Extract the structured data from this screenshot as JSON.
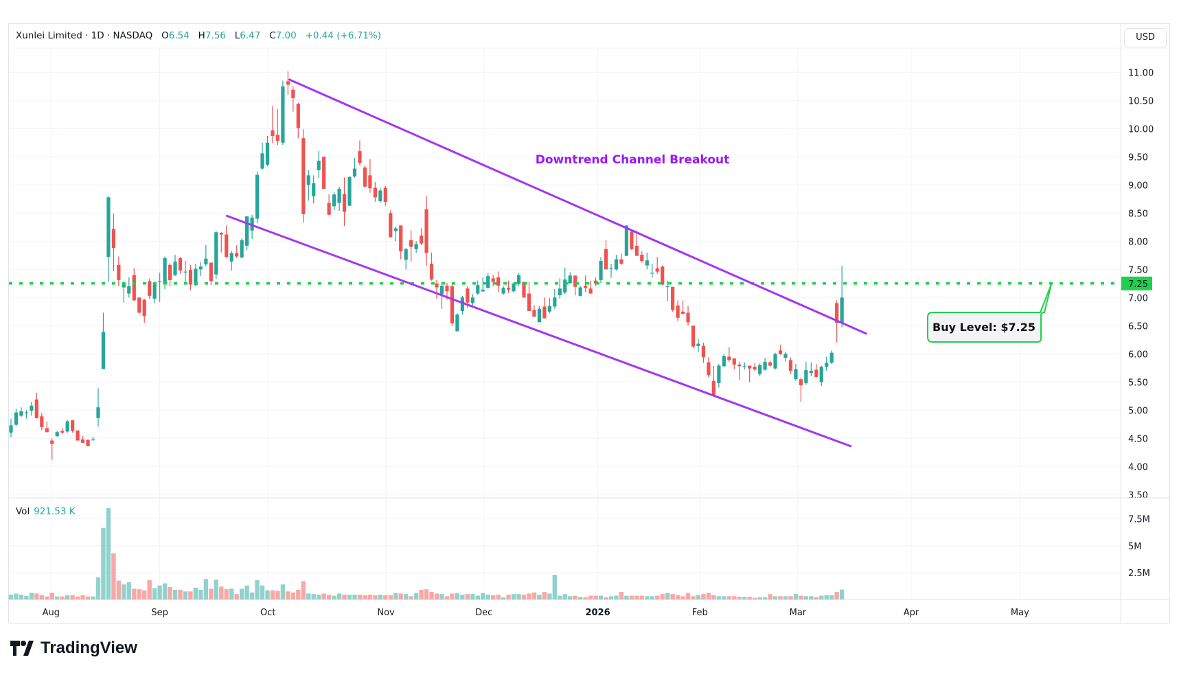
{
  "header": {
    "symbol": "Xunlei Limited · 1D · NASDAQ",
    "o_label": "O",
    "o": "6.54",
    "h_label": "H",
    "h": "7.56",
    "l_label": "L",
    "l": "6.47",
    "c_label": "C",
    "c": "7.00",
    "change": "+0.44 (+6.71%)"
  },
  "currency": "USD",
  "volume_legend": {
    "label": "Vol",
    "value": "921.53 K"
  },
  "brand": "TradingView",
  "colors": {
    "up": "#26a69a",
    "down": "#ef5350",
    "channel": "#a336f5",
    "buy": "#1ed14b",
    "annotation_text": "#9b19f5"
  },
  "chart_data": {
    "type": "candlestick",
    "title": "Xunlei Limited · 1D · NASDAQ",
    "ylim": [
      3.5,
      11.2
    ],
    "price_ticks": [
      "11.00",
      "10.50",
      "10.00",
      "9.50",
      "9.00",
      "8.50",
      "8.00",
      "7.50",
      "7.00",
      "6.50",
      "6.00",
      "5.50",
      "5.00",
      "4.50",
      "4.00",
      "3.50"
    ],
    "volume_ticks": [
      {
        "label": "7.5M",
        "value": 7.5
      },
      {
        "label": "5M",
        "value": 5
      },
      {
        "label": "2.5M",
        "value": 2.5
      }
    ],
    "x_ticks": [
      {
        "label": "Aug",
        "bar": 7.8
      },
      {
        "label": "Sep",
        "bar": 29
      },
      {
        "label": "Oct",
        "bar": 50.1
      },
      {
        "label": "Nov",
        "bar": 73.1
      },
      {
        "label": "Dec",
        "bar": 92.2
      },
      {
        "label": "2026",
        "bar": 114.4,
        "bold": true
      },
      {
        "label": "Feb",
        "bar": 134.3
      },
      {
        "label": "Mar",
        "bar": 153.4
      },
      {
        "label": "Apr",
        "bar": 175.5
      },
      {
        "label": "May",
        "bar": 196.7
      }
    ],
    "ohlc": [
      [
        4.6,
        4.85,
        4.52,
        4.73
      ],
      [
        4.74,
        5.03,
        4.72,
        4.96
      ],
      [
        4.9,
        5.05,
        4.88,
        4.98
      ],
      [
        4.95,
        5.0,
        4.85,
        4.96
      ],
      [
        4.99,
        5.15,
        4.9,
        5.08
      ],
      [
        5.19,
        5.31,
        4.85,
        4.86
      ],
      [
        4.89,
        4.95,
        4.65,
        4.7
      ],
      [
        4.68,
        4.8,
        4.6,
        4.61
      ],
      [
        4.46,
        4.5,
        4.12,
        4.4
      ],
      [
        4.54,
        4.63,
        4.52,
        4.61
      ],
      [
        4.63,
        4.68,
        4.58,
        4.6
      ],
      [
        4.62,
        4.83,
        4.6,
        4.8
      ],
      [
        4.82,
        4.82,
        4.6,
        4.63
      ],
      [
        4.64,
        4.64,
        4.46,
        4.46
      ],
      [
        4.48,
        4.54,
        4.42,
        4.42
      ],
      [
        4.47,
        4.48,
        4.36,
        4.36
      ],
      [
        4.47,
        4.53,
        4.45,
        4.48
      ],
      [
        4.86,
        5.39,
        4.71,
        5.05
      ],
      [
        5.73,
        6.73,
        5.73,
        6.39
      ],
      [
        7.72,
        8.8,
        7.28,
        8.78
      ],
      [
        8.22,
        8.49,
        7.47,
        7.88
      ],
      [
        7.58,
        7.73,
        7.2,
        7.31
      ],
      [
        7.18,
        7.28,
        6.91,
        7.25
      ],
      [
        7.07,
        7.36,
        7.0,
        7.2
      ],
      [
        7.4,
        7.52,
        6.94,
        6.95
      ],
      [
        7.0,
        7.0,
        6.7,
        6.73
      ],
      [
        6.96,
        6.98,
        6.55,
        6.67
      ],
      [
        7.29,
        7.33,
        6.98,
        7.03
      ],
      [
        6.98,
        7.25,
        6.9,
        7.23
      ],
      [
        7.28,
        7.44,
        6.92,
        7.29
      ],
      [
        7.23,
        7.73,
        7.15,
        7.7
      ],
      [
        7.58,
        7.61,
        7.2,
        7.31
      ],
      [
        7.4,
        7.76,
        7.38,
        7.64
      ],
      [
        7.7,
        7.72,
        7.42,
        7.48
      ],
      [
        7.45,
        7.65,
        7.27,
        7.46
      ],
      [
        7.49,
        7.58,
        7.13,
        7.23
      ],
      [
        7.22,
        7.6,
        7.2,
        7.51
      ],
      [
        7.5,
        7.63,
        7.38,
        7.55
      ],
      [
        7.59,
        7.93,
        7.55,
        7.69
      ],
      [
        7.62,
        7.62,
        7.22,
        7.29
      ],
      [
        7.41,
        8.18,
        7.33,
        8.16
      ],
      [
        8.15,
        8.16,
        7.8,
        8.12
      ],
      [
        8.12,
        8.28,
        7.7,
        7.72
      ],
      [
        7.64,
        7.83,
        7.48,
        7.79
      ],
      [
        7.79,
        7.93,
        7.7,
        7.73
      ],
      [
        7.71,
        8.05,
        7.7,
        8.02
      ],
      [
        7.92,
        8.45,
        7.84,
        8.44
      ],
      [
        8.19,
        8.47,
        8.04,
        8.42
      ],
      [
        8.4,
        9.24,
        8.32,
        9.18
      ],
      [
        9.29,
        9.75,
        9.27,
        9.56
      ],
      [
        9.36,
        9.87,
        9.33,
        9.75
      ],
      [
        9.97,
        10.4,
        9.74,
        9.87
      ],
      [
        9.89,
        10.35,
        9.71,
        9.78
      ],
      [
        9.75,
        10.85,
        9.71,
        10.75
      ],
      [
        10.84,
        11.02,
        10.6,
        10.78
      ],
      [
        10.69,
        10.75,
        10.3,
        10.54
      ],
      [
        10.44,
        10.46,
        9.83,
        10.01
      ],
      [
        9.83,
        9.99,
        8.33,
        8.48
      ],
      [
        9.0,
        9.26,
        8.72,
        9.17
      ],
      [
        8.8,
        9.17,
        8.67,
        9.03
      ],
      [
        9.26,
        9.6,
        9.12,
        9.43
      ],
      [
        9.5,
        9.5,
        8.93,
        8.93
      ],
      [
        8.68,
        8.83,
        8.46,
        8.47
      ],
      [
        8.62,
        8.87,
        8.55,
        8.83
      ],
      [
        8.68,
        8.97,
        8.54,
        8.93
      ],
      [
        8.84,
        9.13,
        8.27,
        8.52
      ],
      [
        8.63,
        9.16,
        8.63,
        9.14
      ],
      [
        9.15,
        9.48,
        9.13,
        9.29
      ],
      [
        9.6,
        9.79,
        9.35,
        9.39
      ],
      [
        9.31,
        9.35,
        8.95,
        8.97
      ],
      [
        9.17,
        9.46,
        8.86,
        8.94
      ],
      [
        8.95,
        9.05,
        8.7,
        8.78
      ],
      [
        8.71,
        8.95,
        8.69,
        8.9
      ],
      [
        8.95,
        8.98,
        8.63,
        8.7
      ],
      [
        8.5,
        8.55,
        8.07,
        8.07
      ],
      [
        8.18,
        8.26,
        8.0,
        8.23
      ],
      [
        8.28,
        8.28,
        7.68,
        7.82
      ],
      [
        7.67,
        7.88,
        7.5,
        7.86
      ],
      [
        8.02,
        8.19,
        7.64,
        7.9
      ],
      [
        7.86,
        8.0,
        7.79,
        7.95
      ],
      [
        8.1,
        8.23,
        7.93,
        7.96
      ],
      [
        8.57,
        8.8,
        7.56,
        7.79
      ],
      [
        7.6,
        7.8,
        7.3,
        7.32
      ],
      [
        7.25,
        7.31,
        6.98,
        7.18
      ],
      [
        7.06,
        7.28,
        6.8,
        7.21
      ],
      [
        7.21,
        7.26,
        6.96,
        7.11
      ],
      [
        7.2,
        7.26,
        6.5,
        6.54
      ],
      [
        6.4,
        6.72,
        6.4,
        6.7
      ],
      [
        6.76,
        7.03,
        6.7,
        7.0
      ],
      [
        7.16,
        7.2,
        6.82,
        6.91
      ],
      [
        6.9,
        7.06,
        6.85,
        7.0
      ],
      [
        7.07,
        7.3,
        7.05,
        7.22
      ],
      [
        7.11,
        7.36,
        7.1,
        7.14
      ],
      [
        7.17,
        7.44,
        7.16,
        7.38
      ],
      [
        7.34,
        7.4,
        7.2,
        7.28
      ],
      [
        7.36,
        7.46,
        7.1,
        7.21
      ],
      [
        7.07,
        7.2,
        7.05,
        7.17
      ],
      [
        7.17,
        7.3,
        7.08,
        7.14
      ],
      [
        7.11,
        7.27,
        7.09,
        7.25
      ],
      [
        7.24,
        7.44,
        7.2,
        7.4
      ],
      [
        7.28,
        7.28,
        7.0,
        7.0
      ],
      [
        7.07,
        7.28,
        6.76,
        6.76
      ],
      [
        6.78,
        6.86,
        6.66,
        6.66
      ],
      [
        6.56,
        6.85,
        6.56,
        6.8
      ],
      [
        6.84,
        7.0,
        6.63,
        6.63
      ],
      [
        6.75,
        6.99,
        6.72,
        6.85
      ],
      [
        6.84,
        7.15,
        6.8,
        7.0
      ],
      [
        7.04,
        7.34,
        6.98,
        7.16
      ],
      [
        7.09,
        7.53,
        7.06,
        7.32
      ],
      [
        7.26,
        7.45,
        7.24,
        7.39
      ],
      [
        7.39,
        7.39,
        7.04,
        7.19
      ],
      [
        7.03,
        7.2,
        7.02,
        7.18
      ],
      [
        7.21,
        7.39,
        7.1,
        7.17
      ],
      [
        7.16,
        7.3,
        7.07,
        7.07
      ],
      [
        7.3,
        7.36,
        7.2,
        7.25
      ],
      [
        7.31,
        7.72,
        7.26,
        7.65
      ],
      [
        7.86,
        8.02,
        7.5,
        7.5
      ],
      [
        7.52,
        7.6,
        7.35,
        7.52
      ],
      [
        7.5,
        7.76,
        7.48,
        7.68
      ],
      [
        7.68,
        7.78,
        7.58,
        7.6
      ],
      [
        7.74,
        8.28,
        7.74,
        8.28
      ],
      [
        8.17,
        8.2,
        7.84,
        7.86
      ],
      [
        7.92,
        8.19,
        7.74,
        7.74
      ],
      [
        7.76,
        7.82,
        7.62,
        7.65
      ],
      [
        7.57,
        7.8,
        7.5,
        7.66
      ],
      [
        7.44,
        7.6,
        7.35,
        7.44
      ],
      [
        7.52,
        7.72,
        7.42,
        7.46
      ],
      [
        7.55,
        7.57,
        7.22,
        7.23
      ],
      [
        7.2,
        7.3,
        6.94,
        7.2
      ],
      [
        7.19,
        7.19,
        6.75,
        6.78
      ],
      [
        6.86,
        6.95,
        6.58,
        6.64
      ],
      [
        6.75,
        6.95,
        6.7,
        6.71
      ],
      [
        6.73,
        6.85,
        6.5,
        6.56
      ],
      [
        6.5,
        6.5,
        6.1,
        6.13
      ],
      [
        6.14,
        6.27,
        6.03,
        6.18
      ],
      [
        6.14,
        6.2,
        5.84,
        5.94
      ],
      [
        5.85,
        5.94,
        5.58,
        5.62
      ],
      [
        5.52,
        5.79,
        5.25,
        5.27
      ],
      [
        5.48,
        5.82,
        5.4,
        5.79
      ],
      [
        5.78,
        6.0,
        5.76,
        5.96
      ],
      [
        5.95,
        6.12,
        5.86,
        5.89
      ],
      [
        5.92,
        5.92,
        5.72,
        5.81
      ],
      [
        5.81,
        5.86,
        5.54,
        5.78
      ],
      [
        5.78,
        5.85,
        5.72,
        5.78
      ],
      [
        5.79,
        5.79,
        5.5,
        5.74
      ],
      [
        5.77,
        5.84,
        5.7,
        5.72
      ],
      [
        5.64,
        5.83,
        5.6,
        5.8
      ],
      [
        5.72,
        5.93,
        5.7,
        5.86
      ],
      [
        5.85,
        5.88,
        5.77,
        5.79
      ],
      [
        5.74,
        6.02,
        5.72,
        6.0
      ],
      [
        6.06,
        6.16,
        5.98,
        6.0
      ],
      [
        5.93,
        6.04,
        5.86,
        6.0
      ],
      [
        5.89,
        5.94,
        5.64,
        5.7
      ],
      [
        5.55,
        5.82,
        5.52,
        5.73
      ],
      [
        5.55,
        5.58,
        5.15,
        5.44
      ],
      [
        5.48,
        5.86,
        5.45,
        5.71
      ],
      [
        5.66,
        5.85,
        5.6,
        5.7
      ],
      [
        5.72,
        5.82,
        5.57,
        5.59
      ],
      [
        5.5,
        5.79,
        5.43,
        5.77
      ],
      [
        5.77,
        5.95,
        5.7,
        5.84
      ],
      [
        5.84,
        6.06,
        5.82,
        6.02
      ],
      [
        6.9,
        6.95,
        6.2,
        6.55
      ],
      [
        6.54,
        7.56,
        6.47,
        7.0
      ]
    ],
    "volume_m": [
      0.45,
      0.55,
      0.45,
      0.33,
      0.62,
      0.55,
      0.4,
      0.28,
      0.62,
      0.28,
      0.28,
      0.4,
      0.4,
      0.28,
      0.4,
      0.28,
      0.28,
      2.06,
      6.66,
      8.5,
      4.3,
      1.75,
      1.4,
      1.6,
      1.0,
      0.95,
      0.85,
      1.8,
      1.05,
      1.3,
      1.5,
      1.15,
      0.9,
      0.9,
      0.75,
      0.75,
      1.1,
      0.9,
      1.9,
      1.0,
      1.85,
      1.2,
      0.95,
      1.0,
      0.5,
      1.0,
      1.3,
      0.65,
      1.8,
      1.3,
      0.85,
      0.85,
      0.8,
      1.4,
      0.75,
      0.65,
      0.9,
      1.7,
      0.55,
      0.5,
      0.45,
      0.55,
      0.45,
      0.35,
      0.55,
      0.45,
      0.45,
      0.45,
      0.45,
      0.4,
      0.45,
      0.4,
      0.45,
      0.4,
      0.4,
      0.6,
      0.55,
      0.5,
      0.3,
      0.6,
      0.9,
      0.95,
      0.7,
      0.55,
      0.5,
      0.3,
      0.55,
      0.6,
      0.45,
      0.5,
      0.5,
      0.35,
      0.6,
      0.45,
      0.4,
      0.45,
      0.2,
      0.45,
      0.5,
      0.5,
      0.45,
      0.55,
      0.65,
      0.45,
      0.7,
      0.55,
      2.3,
      0.35,
      0.5,
      0.3,
      0.35,
      0.25,
      0.22,
      0.35,
      0.35,
      0.35,
      0.2,
      0.3,
      0.35,
      0.7,
      0.35,
      0.35,
      0.35,
      0.35,
      0.3,
      0.3,
      0.35,
      0.5,
      0.6,
      0.5,
      0.4,
      0.3,
      0.6,
      0.3,
      0.4,
      0.5,
      0.6,
      0.4,
      0.3,
      0.3,
      0.3,
      0.3,
      0.25,
      0.25,
      0.25,
      0.15,
      0.22,
      0.22,
      0.5,
      0.3,
      0.3,
      0.3,
      0.3,
      0.5,
      0.35,
      0.3,
      0.3,
      0.22,
      0.35,
      0.4,
      0.4,
      0.7,
      0.92
    ],
    "annotations": {
      "upper_channel": {
        "from": {
          "bar": 54.3,
          "price": 10.87
        },
        "to": {
          "bar": 166.7,
          "price": 6.36
        }
      },
      "lower_channel": {
        "from": {
          "bar": 42.1,
          "price": 8.45
        },
        "to": {
          "bar": 163.7,
          "price": 4.36
        }
      },
      "buy_level": {
        "price": 7.25,
        "axis_label": "7.25"
      },
      "title_text": "Downtrend Channel Breakout",
      "callout_text": "Buy Level: $7.25"
    }
  }
}
